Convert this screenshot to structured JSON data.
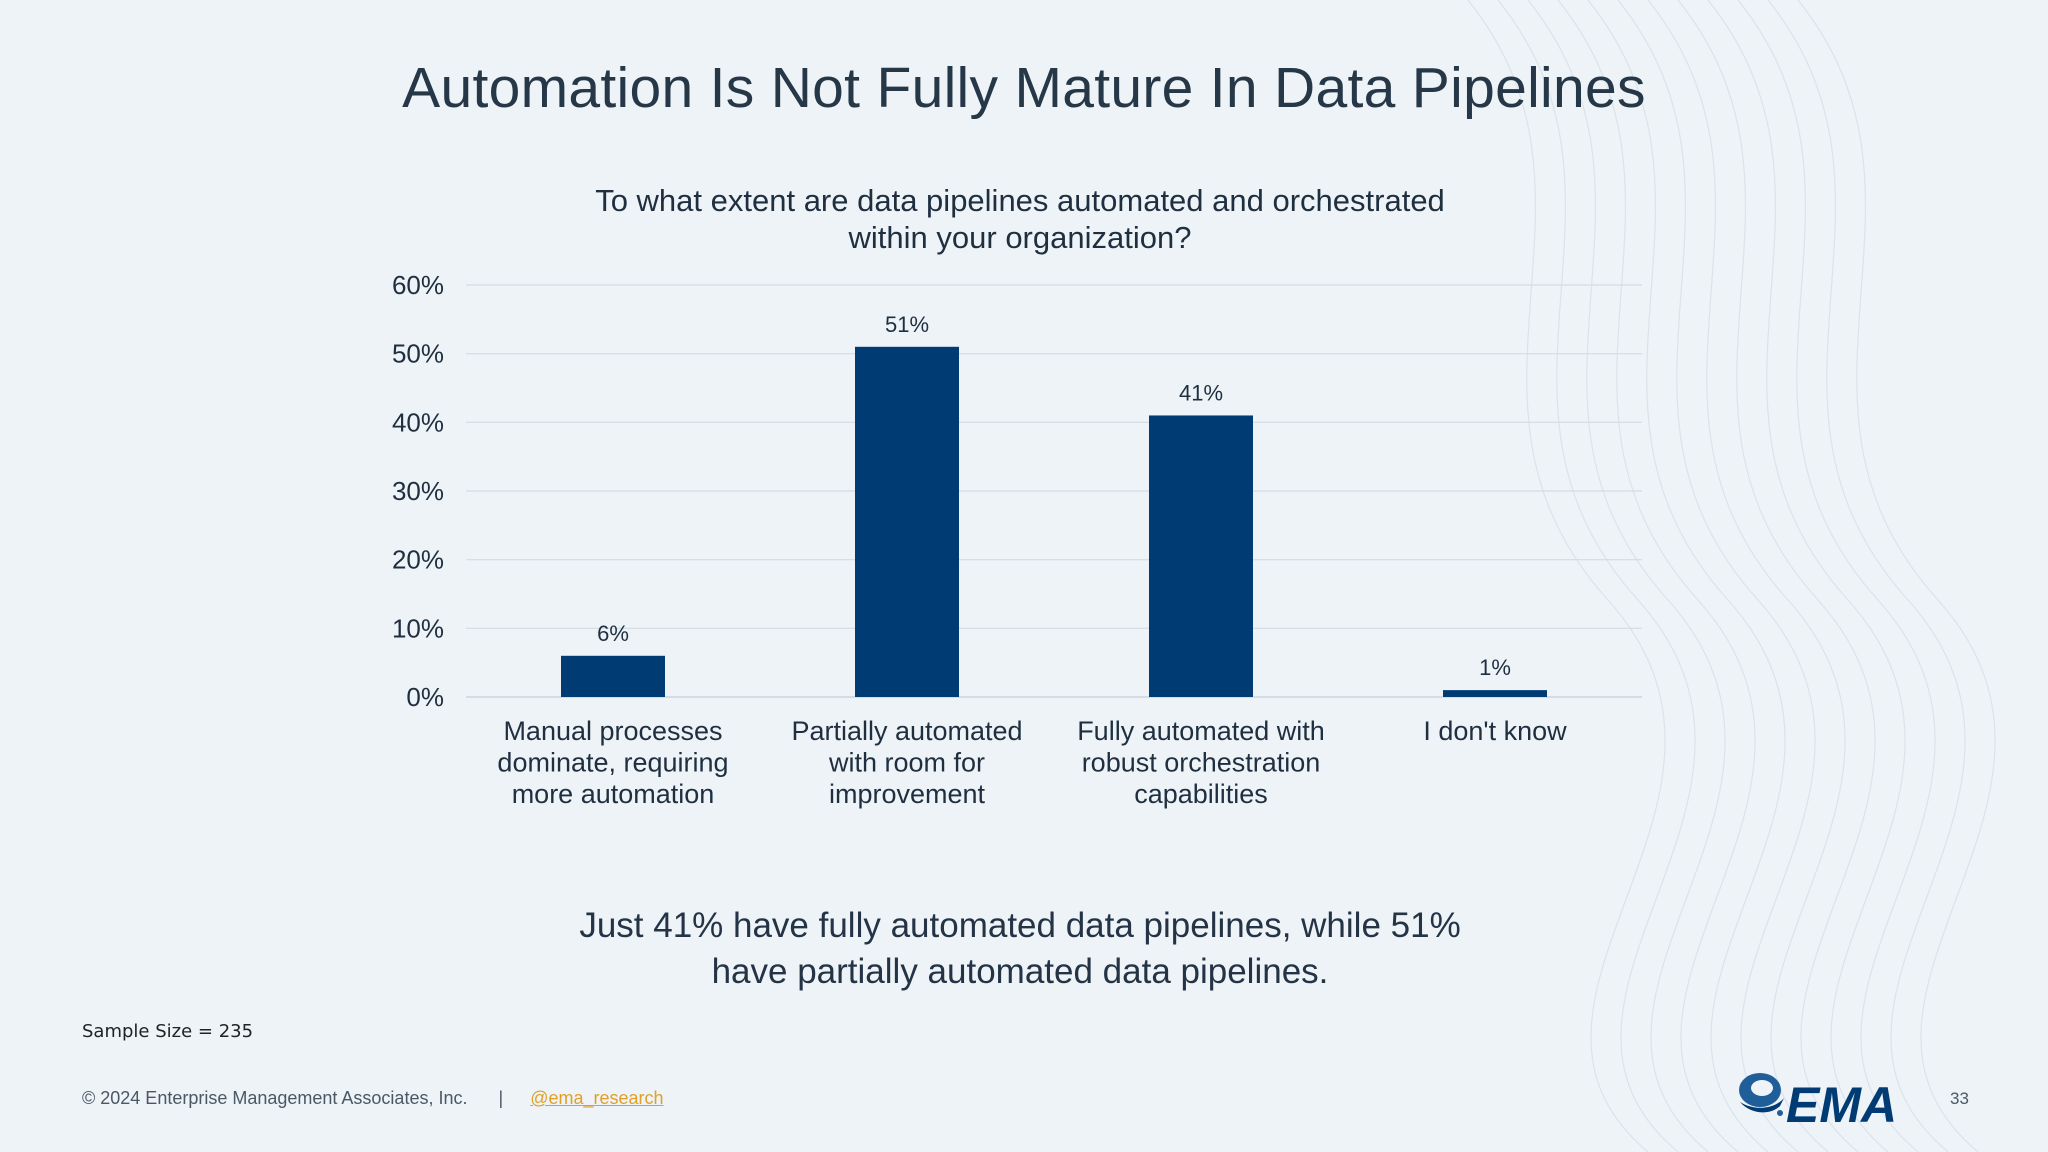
{
  "slide": {
    "title": "Automation Is Not Fully Mature In Data Pipelines",
    "takeaway_line1": "Just 41% have fully automated data pipelines, while 51%",
    "takeaway_line2": "have partially automated data pipelines.",
    "sample_size": "Sample Size = 235",
    "copyright": "© 2024 Enterprise Management Associates, Inc.",
    "separator": "|",
    "social_handle": "@ema_research",
    "logo_text": "EMA",
    "page_number": "33"
  },
  "colors": {
    "bar": "#003b73",
    "gridline": "#d4dbe2",
    "background": "#edf3f7",
    "link": "#e0a028"
  },
  "chart_data": {
    "type": "bar",
    "title_lines": [
      "To what extent are data pipelines automated and orchestrated",
      "within your organization?"
    ],
    "categories": [
      [
        "Manual processes",
        "dominate, requiring",
        "more automation"
      ],
      [
        "Partially automated",
        "with room for",
        "improvement"
      ],
      [
        "Fully automated with",
        "robust orchestration",
        "capabilities"
      ],
      [
        "I don't know"
      ]
    ],
    "values": [
      6,
      51,
      41,
      1
    ],
    "data_labels": [
      "6%",
      "51%",
      "41%",
      "1%"
    ],
    "ylim": [
      0,
      60
    ],
    "yticks": [
      0,
      10,
      20,
      30,
      40,
      50,
      60
    ],
    "ytick_labels": [
      "0%",
      "10%",
      "20%",
      "30%",
      "40%",
      "50%",
      "60%"
    ],
    "xlabel": "",
    "ylabel": "",
    "grid": true,
    "legend": "none"
  }
}
